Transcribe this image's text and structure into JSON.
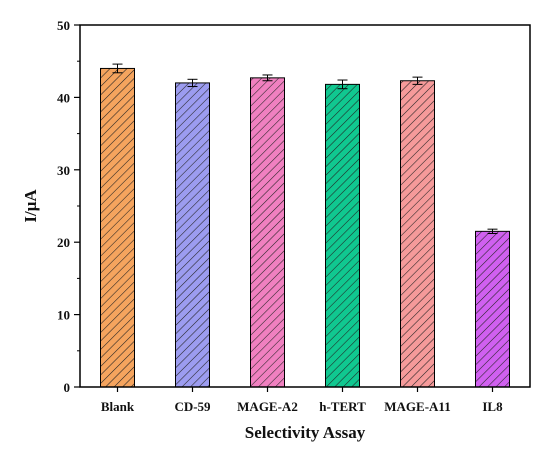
{
  "chart_data": {
    "type": "bar",
    "title": "",
    "xlabel": "Selectivity Assay",
    "ylabel": "I/μA",
    "ylim": [
      0,
      50
    ],
    "yticks": [
      0,
      10,
      20,
      30,
      40,
      50
    ],
    "categories": [
      "Blank",
      "CD-59",
      "MAGE-A2",
      "h-TERT",
      "MAGE-A11",
      "IL8"
    ],
    "values": [
      44.0,
      42.0,
      42.7,
      41.8,
      42.3,
      21.5
    ],
    "errors": [
      0.6,
      0.5,
      0.4,
      0.6,
      0.5,
      0.3
    ],
    "colors": [
      "#F5A45E",
      "#9C9CF0",
      "#F080C0",
      "#10C890",
      "#F59A9A",
      "#D060F0"
    ],
    "grid": false,
    "legend": "none"
  }
}
